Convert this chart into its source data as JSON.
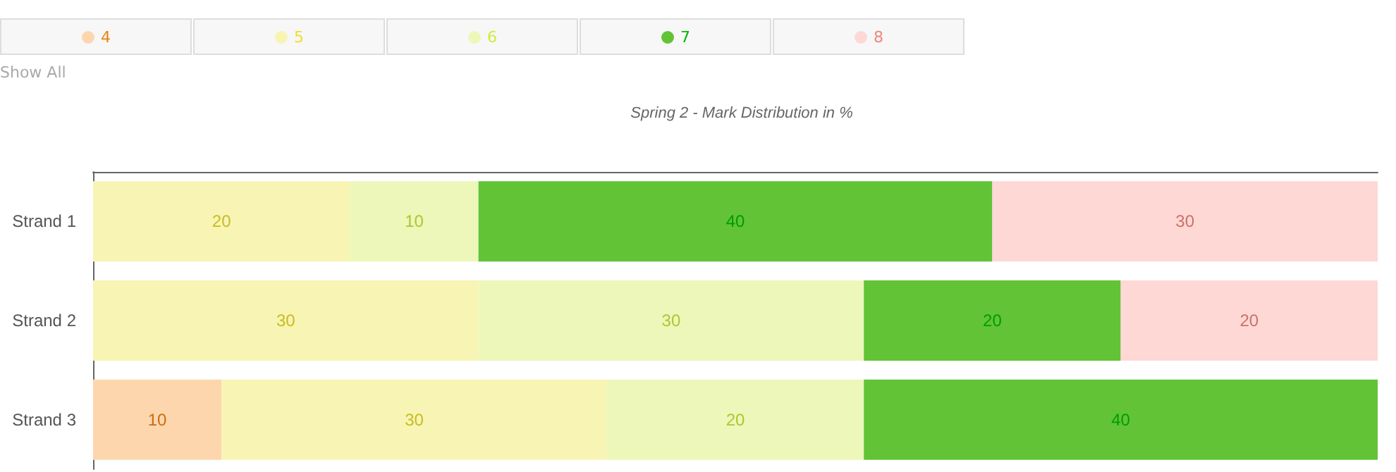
{
  "chart_data": {
    "type": "bar",
    "orientation": "horizontal",
    "stacked": true,
    "title": "Spring 2 - Mark Distribution in %",
    "categories": [
      "Strand 1",
      "Strand 2",
      "Strand 3"
    ],
    "series": [
      {
        "name": "4",
        "color": "#fdd6ae",
        "values": [
          null,
          null,
          10
        ]
      },
      {
        "name": "5",
        "color": "#f8f4b4",
        "values": [
          20,
          30,
          30
        ]
      },
      {
        "name": "6",
        "color": "#edf7b9",
        "values": [
          10,
          30,
          20
        ]
      },
      {
        "name": "7",
        "color": "#62c337",
        "values": [
          40,
          20,
          40
        ]
      },
      {
        "name": "8",
        "color": "#fdd8d5",
        "values": [
          30,
          20,
          null
        ]
      }
    ],
    "xlim": [
      0,
      100
    ],
    "tick_labels": "y",
    "data_labels": true,
    "legend": "top left",
    "grid": false,
    "annotations": [
      "Show All"
    ]
  }
}
